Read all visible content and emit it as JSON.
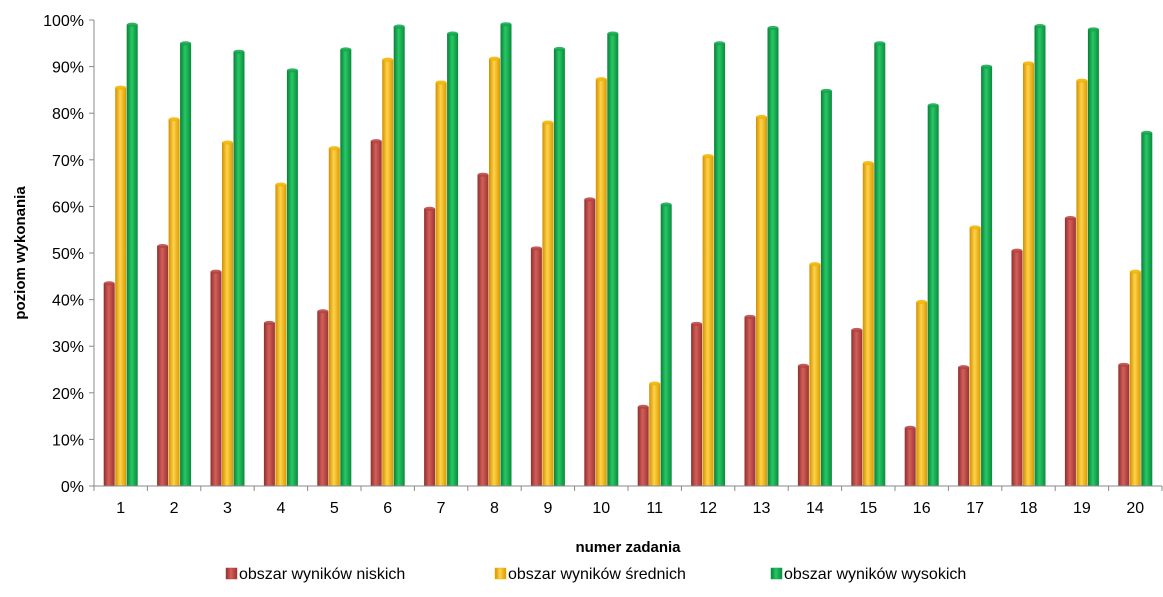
{
  "chart_data": {
    "type": "bar",
    "xlabel": "numer zadania",
    "ylabel": "poziom wykonania",
    "ylim": [
      0,
      100
    ],
    "yticks": [
      "0%",
      "10%",
      "20%",
      "30%",
      "40%",
      "50%",
      "60%",
      "70%",
      "80%",
      "90%",
      "100%"
    ],
    "categories": [
      "1",
      "2",
      "3",
      "4",
      "5",
      "6",
      "7",
      "8",
      "9",
      "10",
      "11",
      "12",
      "13",
      "14",
      "15",
      "16",
      "17",
      "18",
      "19",
      "20"
    ],
    "series": [
      {
        "name": "obszar wyników niskich",
        "color": "#b5423f",
        "values": [
          43.5,
          51.5,
          46,
          35,
          37.5,
          74,
          59.5,
          66.8,
          51,
          61.5,
          17,
          34.8,
          36.3,
          25.8,
          33.5,
          12.5,
          25.5,
          50.5,
          57.5,
          26
        ]
      },
      {
        "name": "obszar wyników średnich",
        "color": "#f2b400",
        "values": [
          85.5,
          78.7,
          73.7,
          64.7,
          72.5,
          91.5,
          86.6,
          91.7,
          78,
          87.3,
          22,
          70.8,
          79.2,
          47.6,
          69.3,
          39.5,
          55.5,
          90.7,
          87,
          46
        ]
      },
      {
        "name": "obszar wyników wysokich",
        "color": "#10a54a",
        "values": [
          99,
          95,
          93.2,
          89.2,
          93.7,
          98.6,
          97.1,
          99.1,
          93.8,
          97.1,
          60.4,
          95,
          98.3,
          84.8,
          95,
          81.7,
          90,
          98.7,
          98,
          75.8
        ]
      }
    ],
    "grid": false,
    "legend_position": "bottom"
  }
}
